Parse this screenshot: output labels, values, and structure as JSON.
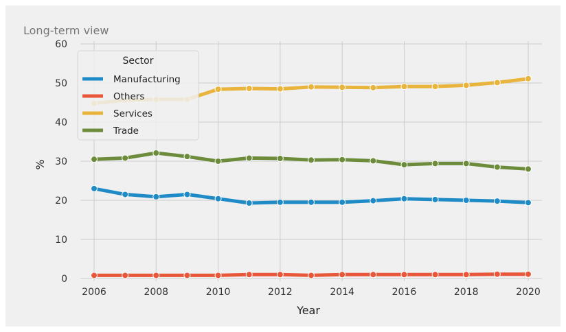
{
  "chart_data": {
    "type": "line",
    "title": "Long-term view",
    "xlabel": "Year",
    "ylabel": "%",
    "xlim": [
      2006,
      2020
    ],
    "ylim": [
      0,
      60
    ],
    "xticks": [
      2006,
      2008,
      2010,
      2012,
      2014,
      2016,
      2018,
      2020
    ],
    "yticks": [
      0,
      10,
      20,
      30,
      40,
      50,
      60
    ],
    "grid": true,
    "legend_title": "Sector",
    "legend_position": "top-left",
    "x": [
      2006,
      2007,
      2008,
      2009,
      2010,
      2011,
      2012,
      2013,
      2014,
      2015,
      2016,
      2017,
      2018,
      2019,
      2020
    ],
    "series": [
      {
        "name": "Manufacturing",
        "color": "#1f8bc6",
        "values": [
          23.0,
          21.5,
          20.9,
          21.5,
          20.4,
          19.3,
          19.5,
          19.5,
          19.5,
          19.9,
          20.4,
          20.2,
          20.0,
          19.8,
          19.4
        ]
      },
      {
        "name": "Others",
        "color": "#e8573a",
        "values": [
          0.8,
          0.8,
          0.8,
          0.8,
          0.8,
          1.0,
          1.0,
          0.8,
          1.0,
          1.0,
          1.0,
          1.0,
          1.0,
          1.1,
          1.1
        ]
      },
      {
        "name": "Services",
        "color": "#e8b43c",
        "values": [
          44.8,
          45.6,
          45.8,
          45.8,
          48.4,
          48.6,
          48.5,
          49.0,
          48.9,
          48.8,
          49.1,
          49.1,
          49.4,
          50.1,
          51.1
        ]
      },
      {
        "name": "Trade",
        "color": "#6c8c3c",
        "values": [
          30.5,
          30.8,
          32.1,
          31.2,
          30.0,
          30.8,
          30.7,
          30.3,
          30.4,
          30.1,
          29.1,
          29.4,
          29.4,
          28.5,
          28.0
        ]
      }
    ]
  }
}
